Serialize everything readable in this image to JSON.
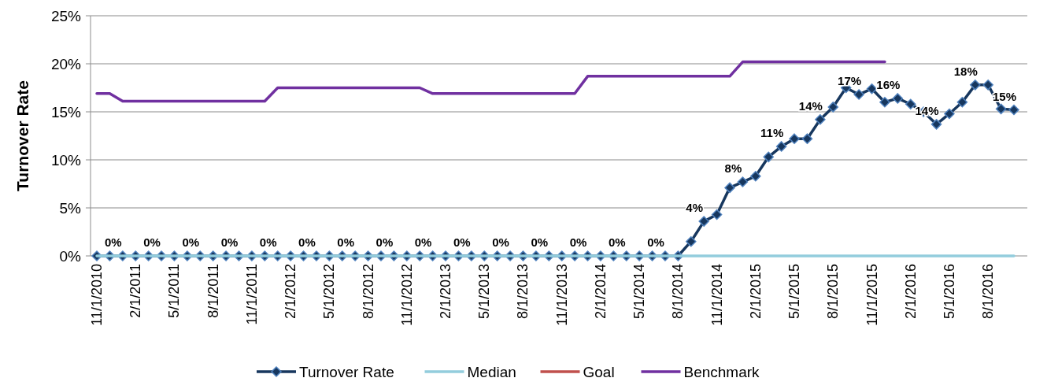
{
  "chart_data": {
    "type": "line",
    "ylabel": "Turnover Rate",
    "categories": [
      "11/1/2010",
      null,
      null,
      "2/1/2011",
      null,
      null,
      "5/1/2011",
      null,
      null,
      "8/1/2011",
      null,
      null,
      "11/1/2011",
      null,
      null,
      "2/1/2012",
      null,
      null,
      "5/1/2012",
      null,
      null,
      "8/1/2012",
      null,
      null,
      "11/1/2012",
      null,
      null,
      "2/1/2013",
      null,
      null,
      "5/1/2013",
      null,
      null,
      "8/1/2013",
      null,
      null,
      "11/1/2013",
      null,
      null,
      "2/1/2014",
      null,
      null,
      "5/1/2014",
      null,
      null,
      "8/1/2014",
      null,
      null,
      "11/1/2014",
      null,
      null,
      "2/1/2015",
      null,
      null,
      "5/1/2015",
      null,
      null,
      "8/1/2015",
      null,
      null,
      "11/1/2015",
      null,
      null,
      "2/1/2016",
      null,
      null,
      "5/1/2016",
      null,
      null,
      "8/1/2016",
      null,
      null
    ],
    "series": [
      {
        "name": "Turnover Rate",
        "color": "#17375e",
        "marker": "diamond",
        "values": [
          0,
          0,
          0,
          0,
          0,
          0,
          0,
          0,
          0,
          0,
          0,
          0,
          0,
          0,
          0,
          0,
          0,
          0,
          0,
          0,
          0,
          0,
          0,
          0,
          0,
          0,
          0,
          0,
          0,
          0,
          0,
          0,
          0,
          0,
          0,
          0,
          0,
          0,
          0,
          0,
          0,
          0,
          0,
          0,
          0,
          0,
          1.5,
          3.6,
          4.3,
          7.1,
          7.7,
          8.3,
          10.3,
          11.4,
          12.2,
          12.2,
          14.2,
          15.5,
          17.5,
          16.8,
          17.4,
          16.0,
          16.4,
          15.8,
          15.0,
          13.7,
          14.8,
          16.0,
          17.8,
          17.8,
          15.3,
          15.2
        ],
        "value_labels": [
          null,
          null,
          "0%",
          null,
          null,
          "0%",
          null,
          null,
          "0%",
          null,
          null,
          "0%",
          null,
          null,
          "0%",
          null,
          null,
          "0%",
          null,
          null,
          "0%",
          null,
          null,
          "0%",
          null,
          null,
          "0%",
          null,
          null,
          "0%",
          null,
          null,
          "0%",
          null,
          null,
          "0%",
          null,
          null,
          "0%",
          null,
          null,
          "0%",
          null,
          null,
          "0%",
          null,
          null,
          "4%",
          null,
          null,
          "8%",
          null,
          null,
          "11%",
          null,
          null,
          "14%",
          null,
          null,
          "17%",
          null,
          null,
          "16%",
          null,
          null,
          "14%",
          null,
          null,
          "18%",
          null,
          null,
          "15%"
        ]
      },
      {
        "name": "Median",
        "color": "#93cddd",
        "values": [
          0,
          0,
          0,
          0,
          0,
          0,
          0,
          0,
          0,
          0,
          0,
          0,
          0,
          0,
          0,
          0,
          0,
          0,
          0,
          0,
          0,
          0,
          0,
          0,
          0,
          0,
          0,
          0,
          0,
          0,
          0,
          0,
          0,
          0,
          0,
          0,
          0,
          0,
          0,
          0,
          0,
          0,
          0,
          0,
          0,
          0,
          0,
          0,
          0,
          0,
          0,
          0,
          0,
          0,
          0,
          0,
          0,
          0,
          0,
          0,
          0,
          0,
          0,
          0,
          0,
          0,
          0,
          0,
          0,
          0,
          0,
          0
        ]
      },
      {
        "name": "Goal",
        "color": "#c0504d",
        "values": [
          null,
          null,
          null,
          null,
          null,
          null,
          null,
          null,
          null,
          null,
          null,
          null,
          null,
          null,
          null,
          null,
          null,
          null,
          null,
          null,
          null,
          null,
          null,
          null,
          null,
          null,
          null,
          null,
          null,
          null,
          null,
          null,
          null,
          null,
          null,
          null,
          null,
          null,
          null,
          null,
          null,
          null,
          null,
          null,
          null,
          null,
          null,
          null,
          null,
          null,
          null,
          null,
          null,
          null,
          null,
          null,
          null,
          null,
          null,
          null,
          null,
          null,
          null,
          null,
          null,
          null,
          null,
          null,
          null,
          null,
          null,
          null
        ]
      },
      {
        "name": "Benchmark",
        "color": "#7030a0",
        "values": [
          16.9,
          16.9,
          16.1,
          16.1,
          16.1,
          16.1,
          16.1,
          16.1,
          16.1,
          16.1,
          16.1,
          16.1,
          16.1,
          16.1,
          17.5,
          17.5,
          17.5,
          17.5,
          17.5,
          17.5,
          17.5,
          17.5,
          17.5,
          17.5,
          17.5,
          17.5,
          16.9,
          16.9,
          16.9,
          16.9,
          16.9,
          16.9,
          16.9,
          16.9,
          16.9,
          16.9,
          16.9,
          16.9,
          18.7,
          18.7,
          18.7,
          18.7,
          18.7,
          18.7,
          18.7,
          18.7,
          18.7,
          18.7,
          18.7,
          18.7,
          20.2,
          20.2,
          20.2,
          20.2,
          20.2,
          20.2,
          20.2,
          20.2,
          20.2,
          20.2,
          20.2,
          20.2,
          null,
          null,
          null,
          null,
          null,
          null,
          null,
          null,
          null,
          null
        ]
      }
    ],
    "ylim": [
      0,
      25
    ],
    "yticks": [
      {
        "value": 0,
        "label": "0%"
      },
      {
        "value": 5,
        "label": "5%"
      },
      {
        "value": 10,
        "label": "10%"
      },
      {
        "value": 15,
        "label": "15%"
      },
      {
        "value": 20,
        "label": "20%"
      },
      {
        "value": 25,
        "label": "25%"
      }
    ],
    "grid": "y",
    "legend": "bottom"
  }
}
